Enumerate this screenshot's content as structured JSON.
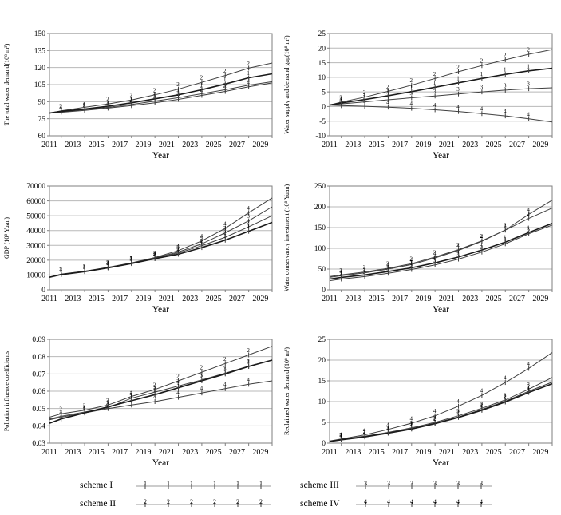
{
  "page": {
    "background": "#ffffff"
  },
  "colors": {
    "line": "#3f3f3f",
    "line_bold": "#1a1a1a",
    "grid": "#b8b8b8",
    "border": "#7f7f7f",
    "text": "#000000"
  },
  "axis": {
    "xlabel": "Year",
    "xmin": 2011,
    "xmax": 2030,
    "xtick_labels": [
      "2011",
      "2013",
      "2015",
      "2017",
      "2019",
      "2021",
      "2023",
      "2025",
      "2027",
      "2029"
    ],
    "xtick_values": [
      2011,
      2013,
      2015,
      2017,
      2019,
      2021,
      2023,
      2025,
      2027,
      2029
    ],
    "x_points": [
      2011,
      2012,
      2014,
      2016,
      2018,
      2020,
      2022,
      2024,
      2026,
      2028,
      2030
    ],
    "marker_years": [
      2012,
      2014,
      2016,
      2018,
      2020,
      2022,
      2024,
      2026,
      2028
    ]
  },
  "legend": {
    "items": [
      {
        "label": "scheme I",
        "marker": "1"
      },
      {
        "label": "scheme II",
        "marker": "2"
      },
      {
        "label": "scheme III",
        "marker": "3"
      },
      {
        "label": "scheme IV",
        "marker": "4"
      }
    ]
  },
  "chart_data": [
    {
      "type": "line",
      "ylabel": "The total water demand(10⁸ m³)",
      "xlabel": "Year",
      "ylim": [
        60,
        150
      ],
      "ystep": 15,
      "ytick_labels": [
        "60",
        "75",
        "90",
        "105",
        "120",
        "135",
        "150"
      ],
      "x": [
        2011,
        2012,
        2014,
        2016,
        2018,
        2020,
        2022,
        2024,
        2026,
        2028,
        2030
      ],
      "series": [
        {
          "name": "scheme I",
          "marker": "1",
          "values": [
            80,
            81.5,
            83.5,
            86,
            89,
            92.5,
            96,
            100.5,
            105.5,
            111,
            114.5
          ]
        },
        {
          "name": "scheme II",
          "marker": "2",
          "values": [
            80,
            82,
            85,
            88,
            91.5,
            96,
            101,
            107,
            113,
            119.5,
            124
          ]
        },
        {
          "name": "scheme III",
          "marker": "3",
          "values": [
            80,
            81,
            83,
            85,
            87.5,
            90.5,
            93.5,
            97,
            100.5,
            104.5,
            107.5
          ]
        },
        {
          "name": "scheme IV",
          "marker": "4",
          "values": [
            80,
            80.7,
            82.3,
            84.3,
            86.5,
            89,
            92,
            95.5,
            99,
            103,
            106.5
          ]
        }
      ]
    },
    {
      "type": "line",
      "ylabel": "Water supply and demand gap(10⁸ m³)",
      "xlabel": "Year",
      "ylim": [
        -10,
        25
      ],
      "ystep": 5,
      "ytick_labels": [
        "-10",
        "-5",
        "0",
        "5",
        "10",
        "15",
        "20",
        "25"
      ],
      "x": [
        2011,
        2012,
        2014,
        2016,
        2018,
        2020,
        2022,
        2024,
        2026,
        2028,
        2030
      ],
      "series": [
        {
          "name": "scheme I",
          "marker": "1",
          "values": [
            0.5,
            1.2,
            2.4,
            3.7,
            5.1,
            6.6,
            8.1,
            9.6,
            11.0,
            12.2,
            13.1
          ]
        },
        {
          "name": "scheme II",
          "marker": "2",
          "values": [
            0.5,
            1.5,
            3.2,
            5.2,
            7.3,
            9.6,
            11.9,
            14.0,
            16.0,
            17.9,
            19.5
          ]
        },
        {
          "name": "scheme III",
          "marker": "3",
          "values": [
            0.5,
            0.9,
            1.6,
            2.3,
            3.0,
            3.6,
            4.3,
            5.0,
            5.6,
            6.1,
            6.4
          ]
        },
        {
          "name": "scheme IV",
          "marker": "4",
          "values": [
            0.5,
            0.3,
            0.1,
            -0.2,
            -0.6,
            -1.1,
            -1.7,
            -2.4,
            -3.2,
            -4.2,
            -5.3
          ]
        }
      ]
    },
    {
      "type": "line",
      "ylabel": "GDP (10⁸ Yuan)",
      "xlabel": "Year",
      "ylim": [
        0,
        70000
      ],
      "ystep": 10000,
      "ytick_labels": [
        "0",
        "10000",
        "20000",
        "30000",
        "40000",
        "50000",
        "60000",
        "70000"
      ],
      "x": [
        2011,
        2012,
        2014,
        2016,
        2018,
        2020,
        2022,
        2024,
        2026,
        2028,
        2030
      ],
      "series": [
        {
          "name": "scheme I",
          "marker": "1",
          "values": [
            8500,
            10300,
            12300,
            14800,
            17700,
            21000,
            24000,
            28500,
            33500,
            39500,
            45500
          ]
        },
        {
          "name": "scheme II",
          "marker": "2",
          "values": [
            8500,
            10400,
            12400,
            15000,
            17900,
            21200,
            24800,
            29800,
            35500,
            42500,
            50000
          ]
        },
        {
          "name": "scheme III",
          "marker": "3",
          "values": [
            8500,
            10500,
            12500,
            15100,
            18100,
            21500,
            25500,
            31000,
            38500,
            46500,
            56000
          ]
        },
        {
          "name": "scheme IV",
          "marker": "4",
          "values": [
            8500,
            10600,
            12600,
            15200,
            18200,
            21800,
            26500,
            33000,
            41500,
            52000,
            62000
          ]
        }
      ]
    },
    {
      "type": "line",
      "ylabel": "Water conservancy investment (10⁸ Yuan)",
      "xlabel": "Year",
      "ylim": [
        0,
        250
      ],
      "ystep": 50,
      "ytick_labels": [
        "0",
        "50",
        "100",
        "150",
        "200",
        "250"
      ],
      "x": [
        2011,
        2012,
        2014,
        2016,
        2018,
        2020,
        2022,
        2024,
        2026,
        2028,
        2030
      ],
      "series": [
        {
          "name": "scheme I",
          "marker": "1",
          "values": [
            26,
            30,
            36,
            44,
            53,
            65,
            79,
            96,
            115,
            138,
            160
          ]
        },
        {
          "name": "scheme II",
          "marker": "2",
          "values": [
            32,
            36,
            43,
            52,
            63,
            79,
            97,
            118,
            144,
            172,
            197
          ]
        },
        {
          "name": "scheme III",
          "marker": "3",
          "values": [
            22,
            26,
            32,
            40,
            49,
            60,
            74,
            91,
            111,
            135,
            156
          ]
        },
        {
          "name": "scheme IV",
          "marker": "4",
          "values": [
            30,
            34,
            41,
            50,
            61,
            77,
            95,
            117,
            144,
            182,
            216
          ]
        }
      ]
    },
    {
      "type": "line",
      "ylabel": "Pollution influence coefficients",
      "xlabel": "Year",
      "ylim": [
        0.03,
        0.09
      ],
      "ystep": 0.01,
      "ytick_labels": [
        "0.03",
        "0.04",
        "0.05",
        "0.06",
        "0.07",
        "0.08",
        "0.09"
      ],
      "x": [
        2011,
        2012,
        2014,
        2016,
        2018,
        2020,
        2022,
        2024,
        2026,
        2028,
        2030
      ],
      "series": [
        {
          "name": "scheme I",
          "marker": "1",
          "values": [
            0.0415,
            0.044,
            0.0475,
            0.051,
            0.0545,
            0.058,
            0.062,
            0.066,
            0.07,
            0.0743,
            0.078
          ]
        },
        {
          "name": "scheme II",
          "marker": "2",
          "values": [
            0.045,
            0.047,
            0.049,
            0.052,
            0.057,
            0.061,
            0.066,
            0.071,
            0.076,
            0.081,
            0.086
          ]
        },
        {
          "name": "scheme III",
          "marker": "3",
          "values": [
            0.044,
            0.0455,
            0.048,
            0.0505,
            0.056,
            0.0595,
            0.063,
            0.0665,
            0.0705,
            0.0745,
            0.078
          ]
        },
        {
          "name": "scheme IV",
          "marker": "4",
          "values": [
            0.0435,
            0.045,
            0.0475,
            0.05,
            0.052,
            0.054,
            0.0565,
            0.059,
            0.0615,
            0.064,
            0.066
          ]
        }
      ]
    },
    {
      "type": "line",
      "ylabel": "Reclaimed water demand (10⁸ m³)",
      "xlabel": "Year",
      "ylim": [
        0,
        25
      ],
      "ystep": 5,
      "ytick_labels": [
        "0",
        "5",
        "10",
        "15",
        "20",
        "25"
      ],
      "x": [
        2011,
        2012,
        2014,
        2016,
        2018,
        2020,
        2022,
        2024,
        2026,
        2028,
        2030
      ],
      "series": [
        {
          "name": "scheme I",
          "marker": "1",
          "values": [
            0.4,
            0.8,
            1.5,
            2.4,
            3.4,
            4.7,
            6.2,
            7.9,
            9.9,
            12.2,
            14.3
          ]
        },
        {
          "name": "scheme II",
          "marker": "2",
          "values": [
            0.45,
            0.9,
            1.6,
            2.5,
            3.5,
            4.8,
            6.3,
            8.1,
            10.1,
            12.5,
            14.7
          ]
        },
        {
          "name": "scheme III",
          "marker": "3",
          "values": [
            0.4,
            0.9,
            1.7,
            2.6,
            3.7,
            5.0,
            6.6,
            8.4,
            10.4,
            13.0,
            15.8
          ]
        },
        {
          "name": "scheme IV",
          "marker": "4",
          "values": [
            0.5,
            1.0,
            2.0,
            3.3,
            4.8,
            6.6,
            8.9,
            11.5,
            14.6,
            18.0,
            21.8
          ]
        }
      ]
    }
  ]
}
